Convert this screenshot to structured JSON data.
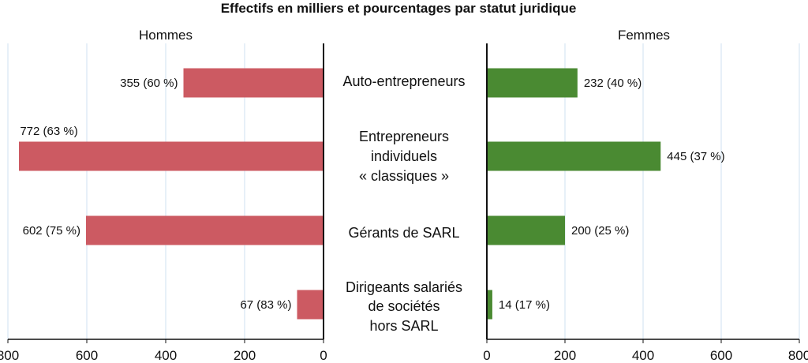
{
  "chart_data": {
    "type": "bar",
    "title": "Effectifs en milliers et pourcentages par statut juridique",
    "categories": [
      [
        "Auto-entrepreneurs"
      ],
      [
        "Entrepreneurs",
        "individuels",
        "« classiques »"
      ],
      [
        "Gérants de SARL"
      ],
      [
        "Dirigeants salariés",
        "de sociétés",
        "hors SARL"
      ]
    ],
    "series": [
      {
        "name": "Hommes",
        "color": "#cc5a62",
        "values": [
          355,
          772,
          602,
          67
        ],
        "labels": [
          "355 (60 %)",
          "772 (63 %)",
          "602 (75 %)",
          "67 (83 %)"
        ]
      },
      {
        "name": "Femmes",
        "color": "#4a8a32",
        "values": [
          232,
          445,
          200,
          14
        ],
        "labels": [
          "232 (40 %)",
          "445 (37 %)",
          "200 (25 %)",
          "14 (17 %)"
        ]
      }
    ],
    "xlim": [
      0,
      800
    ],
    "ticks": [
      0,
      200,
      400,
      600,
      800
    ],
    "grid": true
  }
}
